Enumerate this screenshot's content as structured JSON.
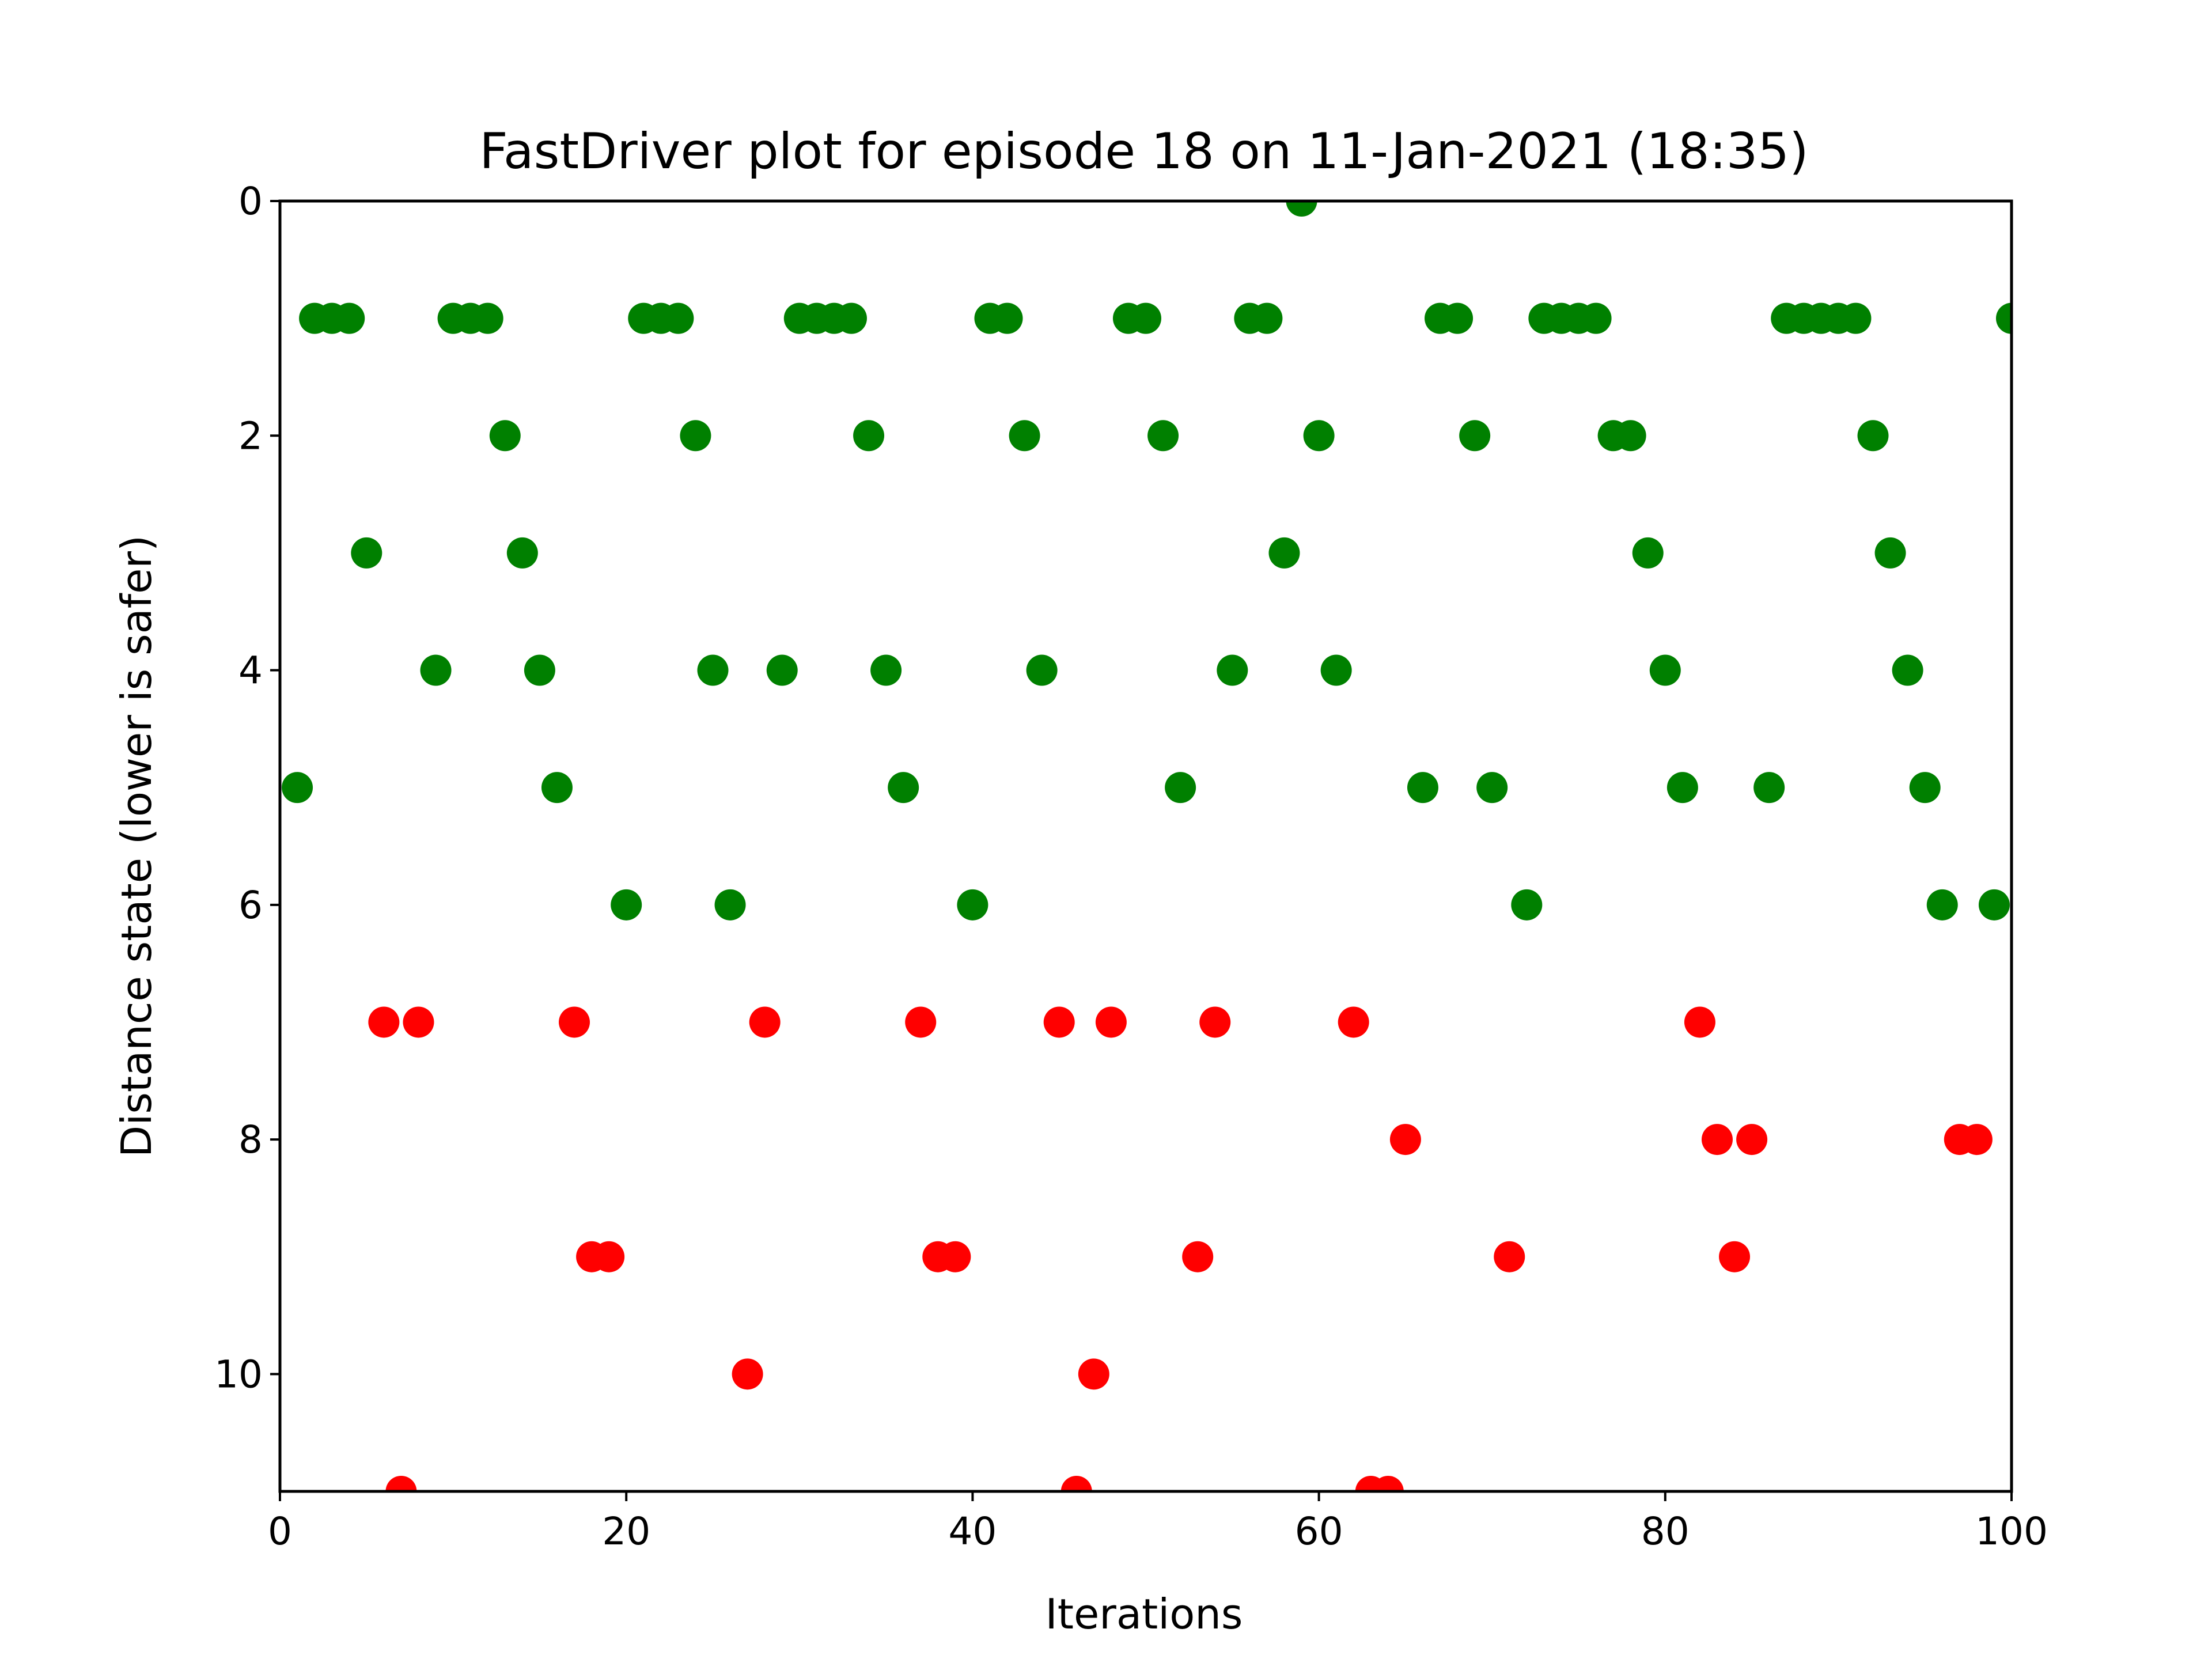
{
  "colors": {
    "safe": "#008000",
    "unsafe": "#ff0000",
    "axis": "#000000",
    "background": "#ffffff"
  },
  "chart_data": {
    "type": "scatter",
    "title": "FastDriver plot for episode 18 on 11-Jan-2021 (18:35)",
    "xlabel": "Iterations",
    "ylabel": "Distance state (lower is safer)",
    "xlim": [
      0,
      100
    ],
    "ylim": [
      11,
      0
    ],
    "y_axis_inverted": true,
    "grid": false,
    "legend": "none",
    "xticks": [
      0,
      20,
      40,
      60,
      80,
      100
    ],
    "yticks": [
      0,
      2,
      4,
      6,
      8,
      10
    ],
    "x": [
      1,
      2,
      3,
      4,
      5,
      6,
      7,
      8,
      9,
      10,
      11,
      12,
      13,
      14,
      15,
      16,
      17,
      18,
      19,
      20,
      21,
      22,
      23,
      24,
      25,
      26,
      27,
      28,
      29,
      30,
      31,
      32,
      33,
      34,
      35,
      36,
      37,
      38,
      39,
      40,
      41,
      42,
      43,
      44,
      45,
      46,
      47,
      48,
      49,
      50,
      51,
      52,
      53,
      54,
      55,
      56,
      57,
      58,
      59,
      60,
      61,
      62,
      63,
      64,
      65,
      66,
      67,
      68,
      69,
      70,
      71,
      72,
      73,
      74,
      75,
      76,
      77,
      78,
      79,
      80,
      81,
      82,
      83,
      84,
      85,
      86,
      87,
      88,
      89,
      90,
      91,
      92,
      93,
      94,
      95,
      96,
      97,
      98,
      99,
      100
    ],
    "y": [
      5,
      1,
      1,
      1,
      3,
      7,
      11,
      7,
      4,
      1,
      1,
      1,
      2,
      3,
      4,
      5,
      7,
      9,
      9,
      6,
      1,
      1,
      1,
      2,
      4,
      6,
      10,
      7,
      4,
      1,
      1,
      1,
      1,
      2,
      4,
      5,
      7,
      9,
      9,
      6,
      1,
      1,
      2,
      4,
      7,
      11,
      10,
      7,
      1,
      1,
      2,
      5,
      9,
      7,
      4,
      1,
      1,
      3,
      0,
      2,
      4,
      7,
      11,
      11,
      8,
      5,
      1,
      1,
      2,
      5,
      9,
      6,
      1,
      1,
      1,
      1,
      2,
      2,
      3,
      4,
      5,
      7,
      8,
      9,
      8,
      5,
      1,
      1,
      1,
      1,
      1,
      2,
      3,
      4,
      5,
      6,
      8,
      8,
      6,
      1
    ],
    "color_rule": "green for values 0-6, red for values 7 and above"
  }
}
